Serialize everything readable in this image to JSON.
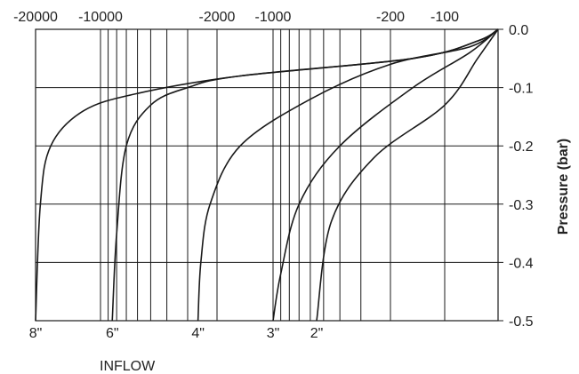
{
  "chart_data": {
    "type": "line",
    "title": "",
    "xlabel": "INFLOW",
    "ylabel": "Pressure (bar)",
    "x_scale": "log",
    "xlim": [
      -20000,
      0
    ],
    "ylim": [
      -0.5,
      0.0
    ],
    "grid": true,
    "x_tick_labels": [
      "-20000",
      "-10000",
      "-2000",
      "-1000",
      "-200",
      "-100"
    ],
    "y_tick_labels": [
      "0.0",
      "-0.1",
      "-0.2",
      "-0.3",
      "-0.4",
      "-0.5"
    ],
    "series": [
      {
        "name": "8\"",
        "points": [
          [
            0,
            0.0
          ],
          [
            -30,
            -0.02
          ],
          [
            -150,
            -0.05
          ],
          [
            -1500,
            -0.08
          ],
          [
            -6000,
            -0.11
          ],
          [
            -12000,
            -0.14
          ],
          [
            -17000,
            -0.2
          ],
          [
            -19000,
            -0.3
          ],
          [
            -20000,
            -0.5
          ]
        ]
      },
      {
        "name": "6\"",
        "points": [
          [
            0,
            0.0
          ],
          [
            -30,
            -0.02
          ],
          [
            -150,
            -0.05
          ],
          [
            -1500,
            -0.08
          ],
          [
            -3000,
            -0.1
          ],
          [
            -5000,
            -0.13
          ],
          [
            -7000,
            -0.2
          ],
          [
            -8000,
            -0.35
          ],
          [
            -8500,
            -0.5
          ]
        ]
      },
      {
        "name": "4\"",
        "points": [
          [
            0,
            0.0
          ],
          [
            -40,
            -0.03
          ],
          [
            -200,
            -0.06
          ],
          [
            -600,
            -0.12
          ],
          [
            -1500,
            -0.2
          ],
          [
            -2200,
            -0.3
          ],
          [
            -2500,
            -0.4
          ],
          [
            -2600,
            -0.5
          ]
        ]
      },
      {
        "name": "3\"",
        "points": [
          [
            0,
            0.0
          ],
          [
            -40,
            -0.04
          ],
          [
            -150,
            -0.1
          ],
          [
            -400,
            -0.2
          ],
          [
            -700,
            -0.3
          ],
          [
            -900,
            -0.42
          ],
          [
            -1000,
            -0.5
          ]
        ]
      },
      {
        "name": "2\"",
        "points": [
          [
            0,
            0.0
          ],
          [
            -30,
            -0.05
          ],
          [
            -100,
            -0.13
          ],
          [
            -250,
            -0.22
          ],
          [
            -450,
            -0.33
          ],
          [
            -550,
            -0.5
          ]
        ]
      }
    ]
  }
}
